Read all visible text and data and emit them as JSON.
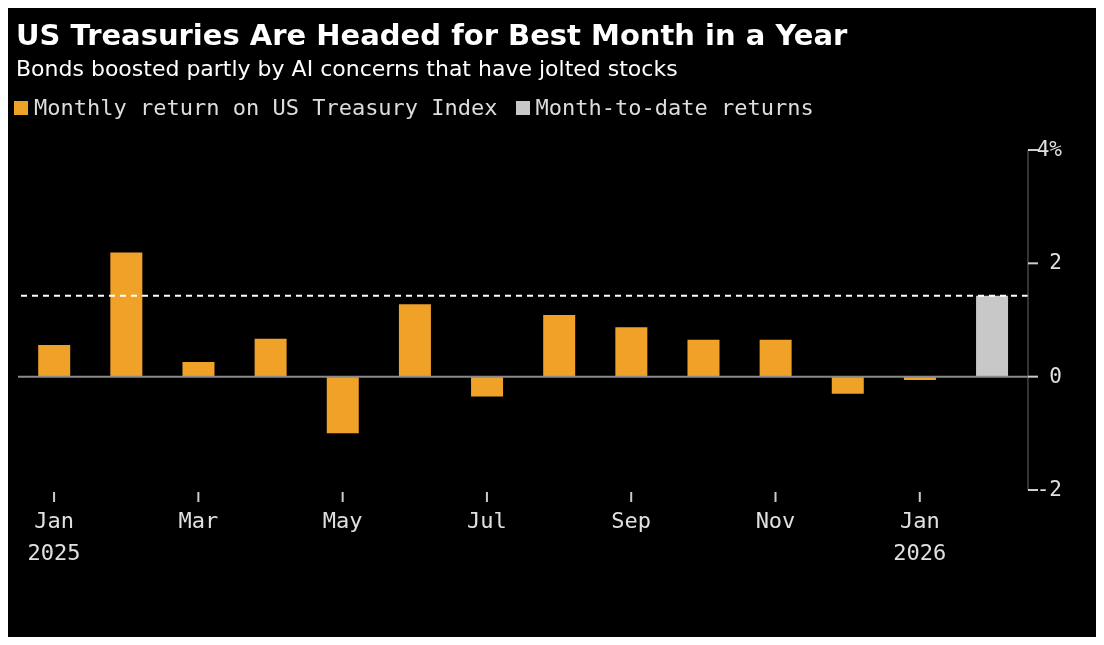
{
  "chart_data": {
    "type": "bar",
    "title": "US Treasuries Are Headed for Best Month in a Year",
    "subtitle": "Bonds boosted partly by AI concerns that have jolted stocks",
    "categories": [
      "Jan\n2025",
      null,
      "Mar",
      null,
      "May",
      null,
      "Jul",
      null,
      "Sep",
      null,
      "Nov",
      null,
      "Jan\n2026",
      null
    ],
    "series": [
      {
        "name": "Monthly return on US Treasury Index",
        "color": "#f0a228",
        "values": [
          0.56,
          2.19,
          0.26,
          0.67,
          -1.0,
          1.28,
          -0.35,
          1.09,
          0.87,
          0.65,
          0.65,
          -0.3,
          -0.06,
          null
        ]
      },
      {
        "name": "Month-to-date returns",
        "color": "#c8c8c8",
        "values": [
          null,
          null,
          null,
          null,
          null,
          null,
          null,
          null,
          null,
          null,
          null,
          null,
          null,
          1.43
        ]
      }
    ],
    "stacked": true,
    "ylim": [
      -2,
      4
    ],
    "yticks": [
      {
        "value": 4,
        "label": "4%"
      },
      2,
      0,
      -2
    ],
    "ref_lines": [
      {
        "axis": "y",
        "value": 0,
        "color": "#8a8a8a",
        "line_style": "solid"
      },
      {
        "axis": "y",
        "value": 1.43,
        "color": "#ffffff",
        "line_style": "dashed"
      }
    ],
    "grid": false,
    "legend": "top left"
  }
}
